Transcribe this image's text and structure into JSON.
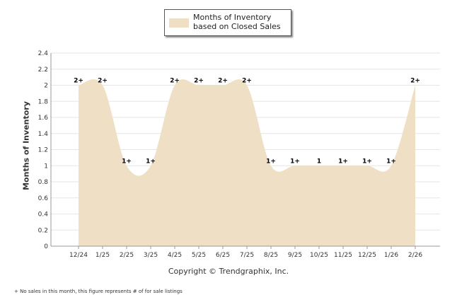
{
  "colors": {
    "fill": "#efdfc4",
    "grid": "#e6e6e6",
    "axis": "#999999"
  },
  "legend": {
    "label": "Months of Inventory based on Closed Sales"
  },
  "copyright": "Copyright © Trendgraphix, Inc.",
  "footnote": "+ No sales in this month, this figure represents # of for sale listings",
  "chart_data": {
    "type": "area",
    "ylabel": "Months of Inventory",
    "ylim": [
      0,
      2.4
    ],
    "yticks": [
      0,
      0.2,
      0.4,
      0.6,
      0.8,
      1,
      1.2,
      1.4,
      1.6,
      1.8,
      2,
      2.2,
      2.4
    ],
    "grid": true,
    "legend_position": "top-center",
    "categories": [
      "12/24",
      "1/25",
      "2/25",
      "3/25",
      "4/25",
      "5/25",
      "6/25",
      "7/25",
      "8/25",
      "9/25",
      "10/25",
      "11/25",
      "12/25",
      "1/26",
      "2/26"
    ],
    "series": [
      {
        "name": "Months of Inventory based on Closed Sales",
        "values": [
          2,
          2,
          1,
          1,
          2,
          2,
          2,
          2,
          1,
          1,
          1,
          1,
          1,
          1,
          2
        ],
        "labels": [
          "2+",
          "2+",
          "1+",
          "1+",
          "2+",
          "2+",
          "2+",
          "2+",
          "1+",
          "1+",
          "1",
          "1+",
          "1+",
          "1+",
          "2+"
        ]
      }
    ]
  }
}
